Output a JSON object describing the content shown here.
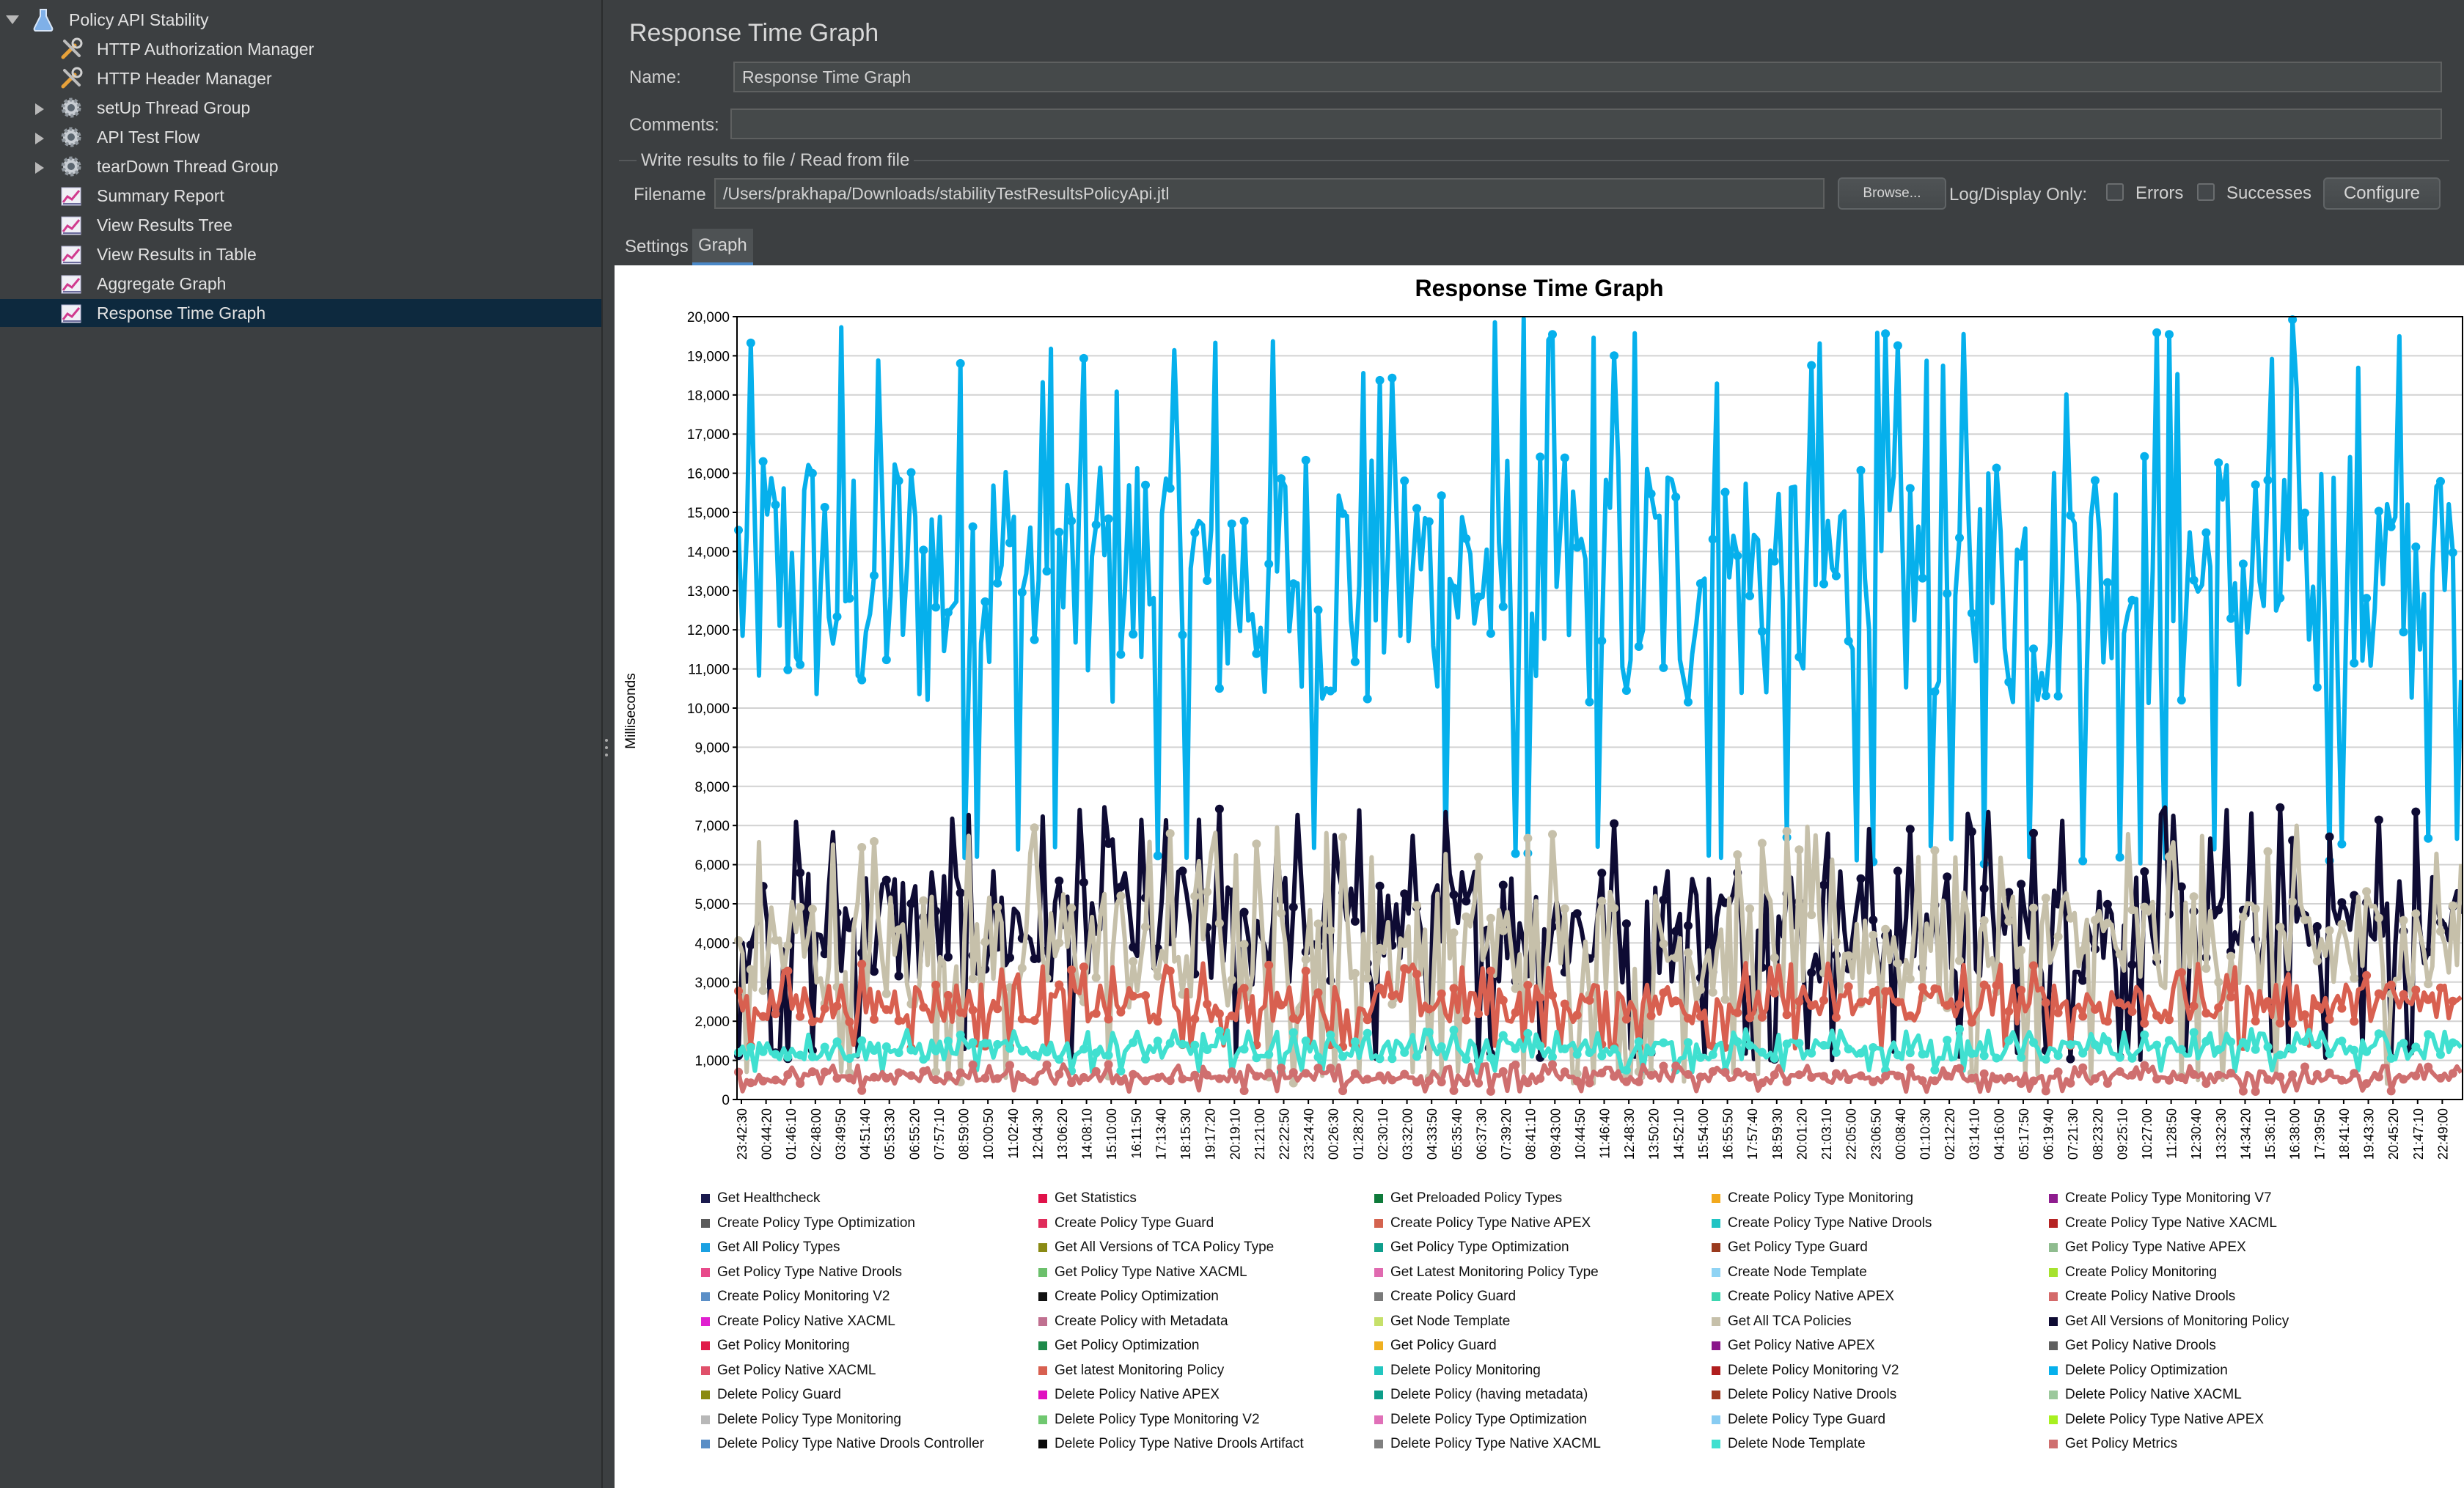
{
  "tree": {
    "items": [
      {
        "label": "Policy API Stability",
        "level": 0,
        "expander": "down",
        "icon": "flask-icon",
        "selected": false
      },
      {
        "label": "HTTP Authorization Manager",
        "level": 1,
        "expander": "",
        "icon": "wrench-icon",
        "selected": false
      },
      {
        "label": "HTTP Header Manager",
        "level": 1,
        "expander": "",
        "icon": "wrench-icon",
        "selected": false
      },
      {
        "label": "setUp Thread Group",
        "level": 1,
        "expander": "right",
        "icon": "gear-icon",
        "selected": false
      },
      {
        "label": "API Test Flow",
        "level": 1,
        "expander": "right",
        "icon": "gear-icon",
        "selected": false
      },
      {
        "label": "tearDown Thread Group",
        "level": 1,
        "expander": "right",
        "icon": "gear-icon",
        "selected": false
      },
      {
        "label": "Summary Report",
        "level": 1,
        "expander": "",
        "icon": "graph-icon",
        "selected": false
      },
      {
        "label": "View Results Tree",
        "level": 1,
        "expander": "",
        "icon": "graph-icon",
        "selected": false
      },
      {
        "label": "View Results in Table",
        "level": 1,
        "expander": "",
        "icon": "graph-icon",
        "selected": false
      },
      {
        "label": "Aggregate Graph",
        "level": 1,
        "expander": "",
        "icon": "graph-icon",
        "selected": false
      },
      {
        "label": "Response Time Graph",
        "level": 1,
        "expander": "",
        "icon": "graph-icon",
        "selected": true
      }
    ]
  },
  "panel": {
    "title": "Response Time Graph",
    "name_label": "Name:",
    "name_value": "Response Time Graph",
    "comments_label": "Comments:",
    "comments_value": "",
    "file_section_title": "Write results to file / Read from file",
    "filename_label": "Filename",
    "filename_value": "/Users/prakhapa/Downloads/stabilityTestResultsPolicyApi.jtl",
    "browse_label": "Browse...",
    "log_display_label": "Log/Display Only:",
    "errors_label": "Errors",
    "errors_checked": false,
    "successes_label": "Successes",
    "successes_checked": false,
    "configure_label": "Configure",
    "tabs": [
      {
        "label": "Settings",
        "active": false
      },
      {
        "label": "Graph",
        "active": true
      }
    ]
  },
  "chart_data": {
    "type": "line",
    "title": "Response Time Graph",
    "ylabel": "Milliseconds",
    "xlabel": "",
    "ylim": [
      0,
      20000
    ],
    "yticks": [
      "0",
      "1,000",
      "2,000",
      "3,000",
      "4,000",
      "5,000",
      "6,000",
      "7,000",
      "8,000",
      "9,000",
      "10,000",
      "11,000",
      "12,000",
      "13,000",
      "14,000",
      "15,000",
      "16,000",
      "17,000",
      "18,000",
      "19,000",
      "20,000"
    ],
    "x": [
      "23:42:30",
      "00:44:20",
      "01:46:10",
      "02:48:00",
      "03:49:50",
      "04:51:40",
      "05:53:30",
      "06:55:20",
      "07:57:10",
      "08:59:00",
      "10:00:50",
      "11:02:40",
      "12:04:30",
      "13:06:20",
      "14:08:10",
      "15:10:00",
      "16:11:50",
      "17:13:40",
      "18:15:30",
      "19:17:20",
      "20:19:10",
      "21:21:00",
      "22:22:50",
      "23:24:40",
      "00:26:30",
      "01:28:20",
      "02:30:10",
      "03:32:00",
      "04:33:50",
      "05:35:40",
      "06:37:30",
      "07:39:20",
      "08:41:10",
      "09:43:00",
      "10:44:50",
      "11:46:40",
      "12:48:30",
      "13:50:20",
      "14:52:10",
      "15:54:00",
      "16:55:50",
      "17:57:40",
      "18:59:30",
      "20:01:20",
      "21:03:10",
      "22:05:00",
      "23:06:50",
      "00:08:40",
      "01:10:30",
      "02:12:20",
      "03:14:10",
      "04:16:00",
      "05:17:50",
      "06:19:40",
      "07:21:30",
      "08:23:20",
      "09:25:10",
      "10:27:00",
      "11:28:50",
      "12:30:40",
      "13:32:30",
      "14:34:20",
      "15:36:10",
      "16:38:00",
      "17:39:50",
      "18:41:40",
      "19:43:30",
      "20:45:20",
      "21:47:10",
      "22:49:00"
    ],
    "grid": true,
    "legend_position": "bottom",
    "series": [
      {
        "name": "Get Healthcheck",
        "color": "#1a1a4e",
        "min": 0,
        "max": 0
      },
      {
        "name": "Get Statistics",
        "color": "#e0124a",
        "min": 0,
        "max": 0
      },
      {
        "name": "Get Preloaded Policy Types",
        "color": "#0e7a3a",
        "min": 0,
        "max": 0
      },
      {
        "name": "Create Policy Type Monitoring",
        "color": "#f2a91d",
        "min": 0,
        "max": 0
      },
      {
        "name": "Create Policy Type Monitoring V7",
        "color": "#8e1c8e",
        "min": 0,
        "max": 0
      },
      {
        "name": "Create Policy Type Optimization",
        "color": "#5a5a5a",
        "min": 0,
        "max": 0
      },
      {
        "name": "Create Policy Type Guard",
        "color": "#e02b5a",
        "min": 0,
        "max": 0
      },
      {
        "name": "Create Policy Type Native APEX",
        "color": "#d4634f",
        "min": 0,
        "max": 0
      },
      {
        "name": "Create Policy Type Native Drools",
        "color": "#20c4c4",
        "min": 0,
        "max": 0
      },
      {
        "name": "Create Policy Type Native XACML",
        "color": "#b52323",
        "min": 0,
        "max": 0
      },
      {
        "name": "Get All Policy Types",
        "color": "#1ba1e2",
        "min": 0,
        "max": 0
      },
      {
        "name": "Get All Versions of TCA Policy Type",
        "color": "#8a8a14",
        "min": 0,
        "max": 0
      },
      {
        "name": "Get Policy Type Optimization",
        "color": "#0f9e8c",
        "min": 0,
        "max": 0
      },
      {
        "name": "Get Policy Type Guard",
        "color": "#9a3a1e",
        "min": 0,
        "max": 0
      },
      {
        "name": "Get Policy Type Native APEX",
        "color": "#8fbc8f",
        "min": 0,
        "max": 0
      },
      {
        "name": "Get Policy Type Native Drools",
        "color": "#e84a8a",
        "min": 0,
        "max": 0
      },
      {
        "name": "Get Policy Type Native XACML",
        "color": "#6cc06c",
        "min": 0,
        "max": 0
      },
      {
        "name": "Get Latest Monitoring Policy Type",
        "color": "#e06ab0",
        "min": 0,
        "max": 0
      },
      {
        "name": "Create Node Template",
        "color": "#8fd3f4",
        "min": 0,
        "max": 0
      },
      {
        "name": "Create Policy Monitoring",
        "color": "#a6e22e",
        "min": 0,
        "max": 0
      },
      {
        "name": "Create Policy Monitoring V2",
        "color": "#5b8fc7",
        "min": 0,
        "max": 0
      },
      {
        "name": "Create Policy Optimization",
        "color": "#111111",
        "min": 0,
        "max": 0
      },
      {
        "name": "Create Policy Guard",
        "color": "#7a7a7a",
        "min": 0,
        "max": 0
      },
      {
        "name": "Create Policy Native APEX",
        "color": "#3cd6b0",
        "min": 0,
        "max": 0
      },
      {
        "name": "Create Policy Native Drools",
        "color": "#d46a6a",
        "min": 0,
        "max": 0
      },
      {
        "name": "Create Policy Native XACML",
        "color": "#e020d0",
        "min": 0,
        "max": 0
      },
      {
        "name": "Create Policy with Metadata",
        "color": "#c07090",
        "min": 0,
        "max": 0
      },
      {
        "name": "Get Node Template",
        "color": "#c6e06a",
        "min": 0,
        "max": 0
      },
      {
        "name": "Get All TCA Policies",
        "color": "#c6c0aa",
        "min": 400,
        "max": 7000
      },
      {
        "name": "Get All Versions of Monitoring Policy",
        "color": "#0e0b33",
        "min": 1000,
        "max": 7500
      },
      {
        "name": "Get Policy Monitoring",
        "color": "#e01c4a",
        "min": 0,
        "max": 0
      },
      {
        "name": "Get Policy Optimization",
        "color": "#1e8a4a",
        "min": 0,
        "max": 0
      },
      {
        "name": "Get Policy Guard",
        "color": "#f0b020",
        "min": 0,
        "max": 0
      },
      {
        "name": "Get Policy Native APEX",
        "color": "#8a168a",
        "min": 0,
        "max": 0
      },
      {
        "name": "Get Policy Native Drools",
        "color": "#606060",
        "min": 0,
        "max": 0
      },
      {
        "name": "Get Policy Native XACML",
        "color": "#e0506a",
        "min": 0,
        "max": 0
      },
      {
        "name": "Get latest Monitoring Policy",
        "color": "#d86050",
        "min": 1300,
        "max": 3500
      },
      {
        "name": "Delete Policy Monitoring",
        "color": "#22c6c0",
        "min": 0,
        "max": 0
      },
      {
        "name": "Delete Policy Monitoring V2",
        "color": "#b01e1e",
        "min": 0,
        "max": 0
      },
      {
        "name": "Delete Policy Optimization",
        "color": "#06b0ec",
        "min": 6000,
        "max": 20000
      },
      {
        "name": "Delete Policy Guard",
        "color": "#8a8a10",
        "min": 0,
        "max": 0
      },
      {
        "name": "Delete Policy Native APEX",
        "color": "#e010c0",
        "min": 0,
        "max": 0
      },
      {
        "name": "Delete Policy (having metadata)",
        "color": "#0d9e8a",
        "min": 0,
        "max": 0
      },
      {
        "name": "Delete Policy Native Drools",
        "color": "#a03a20",
        "min": 0,
        "max": 0
      },
      {
        "name": "Delete Policy Native XACML",
        "color": "#9cc89c",
        "min": 0,
        "max": 0
      },
      {
        "name": "Delete Policy Type Monitoring",
        "color": "#b8b8b8",
        "min": 0,
        "max": 0
      },
      {
        "name": "Delete Policy Type Monitoring V2",
        "color": "#70c870",
        "min": 0,
        "max": 0
      },
      {
        "name": "Delete Policy Type Optimization",
        "color": "#e070b8",
        "min": 0,
        "max": 0
      },
      {
        "name": "Delete Policy Type Guard",
        "color": "#88ccf2",
        "min": 0,
        "max": 0
      },
      {
        "name": "Delete Policy Type Native APEX",
        "color": "#a8f020",
        "min": 0,
        "max": 0
      },
      {
        "name": "Delete Policy Type Native Drools Controller",
        "color": "#5a8ec6",
        "min": 0,
        "max": 0
      },
      {
        "name": "Delete Policy Type Native Drools Artifact",
        "color": "#0a0a0a",
        "min": 0,
        "max": 0
      },
      {
        "name": "Delete Policy Type Native XACML",
        "color": "#808080",
        "min": 0,
        "max": 0
      },
      {
        "name": "Delete Node Template",
        "color": "#40e0d0",
        "min": 700,
        "max": 1800
      },
      {
        "name": "Get Policy Metrics",
        "color": "#cf6f6f",
        "min": 200,
        "max": 900
      }
    ]
  }
}
